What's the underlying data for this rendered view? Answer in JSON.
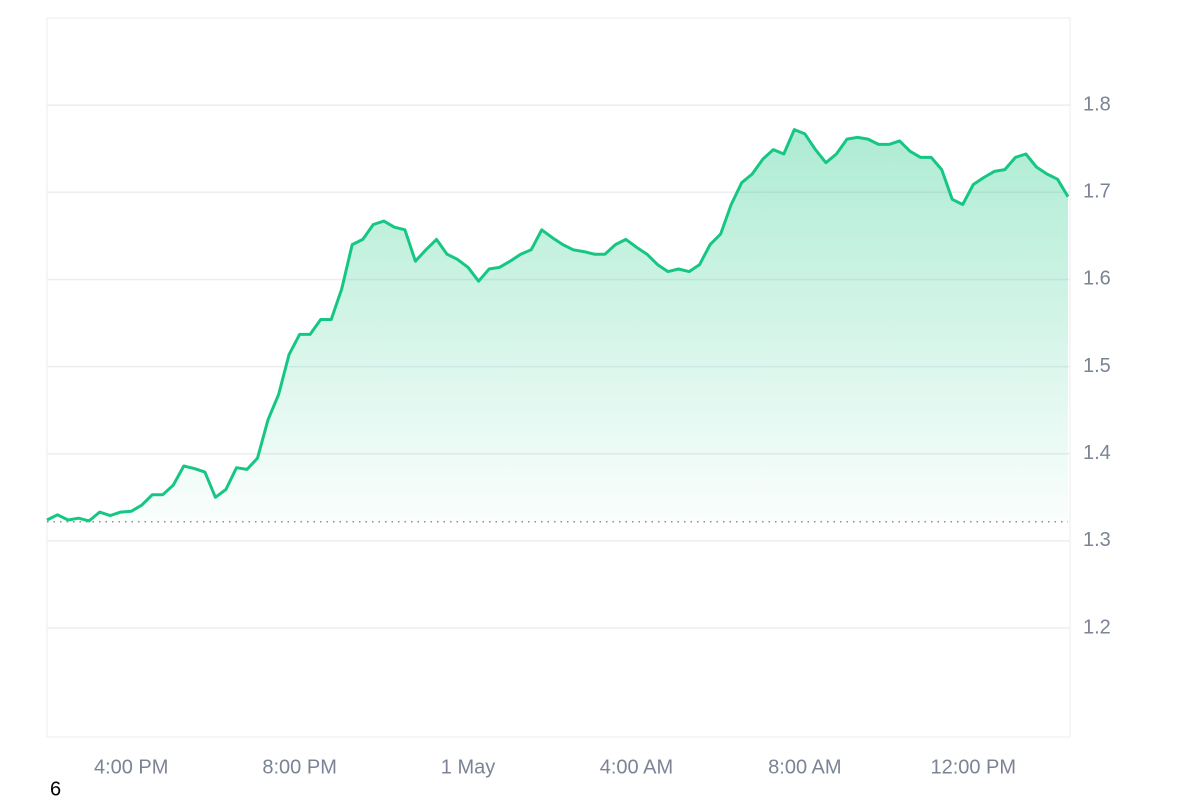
{
  "chart_data": {
    "type": "line",
    "categories": [
      null,
      null,
      null,
      null,
      null,
      null,
      null,
      null,
      "4:00 PM",
      null,
      null,
      null,
      null,
      null,
      null,
      null,
      null,
      null,
      null,
      null,
      null,
      null,
      null,
      null,
      "8:00 PM",
      null,
      null,
      null,
      null,
      null,
      null,
      null,
      null,
      null,
      null,
      null,
      null,
      null,
      null,
      null,
      "1 May",
      null,
      null,
      null,
      null,
      null,
      null,
      null,
      null,
      null,
      null,
      null,
      null,
      null,
      null,
      null,
      "4:00 AM",
      null,
      null,
      null,
      null,
      null,
      null,
      null,
      null,
      null,
      null,
      null,
      null,
      null,
      null,
      null,
      "8:00 AM",
      null,
      null,
      null,
      null,
      null,
      null,
      null,
      null,
      null,
      null,
      null,
      null,
      null,
      null,
      null,
      "12:00 PM",
      null,
      null,
      null,
      null,
      null,
      null,
      null,
      null,
      null
    ],
    "series": [
      {
        "color": "#16c784",
        "values": [
          1.324,
          1.33,
          1.324,
          1.326,
          1.323,
          1.333,
          1.329,
          1.333,
          1.334,
          1.341,
          1.353,
          1.353,
          1.364,
          1.386,
          1.383,
          1.379,
          1.35,
          1.359,
          1.384,
          1.382,
          1.395,
          1.439,
          1.468,
          1.514,
          1.537,
          1.537,
          1.554,
          1.554,
          1.589,
          1.64,
          1.646,
          1.663,
          1.667,
          1.66,
          1.657,
          1.621,
          1.634,
          1.646,
          1.629,
          1.623,
          1.614,
          1.598,
          1.612,
          1.614,
          1.621,
          1.629,
          1.634,
          1.657,
          1.648,
          1.64,
          1.634,
          1.632,
          1.629,
          1.629,
          1.64,
          1.646,
          1.637,
          1.629,
          1.617,
          1.609,
          1.612,
          1.609,
          1.617,
          1.64,
          1.652,
          1.686,
          1.711,
          1.721,
          1.738,
          1.749,
          1.744,
          1.772,
          1.767,
          1.749,
          1.734,
          1.744,
          1.761,
          1.763,
          1.761,
          1.755,
          1.755,
          1.759,
          1.747,
          1.74,
          1.74,
          1.726,
          1.692,
          1.686,
          1.709,
          1.717,
          1.724,
          1.726,
          1.74,
          1.744,
          1.729,
          1.721,
          1.715,
          1.695
        ]
      }
    ],
    "baseline": 1.322,
    "ylim": [
      1.075,
      1.9
    ],
    "yticks": [
      1.2,
      1.3,
      1.4,
      1.5,
      1.6,
      1.7,
      1.8
    ],
    "grid": true,
    "footer_label": "6"
  }
}
